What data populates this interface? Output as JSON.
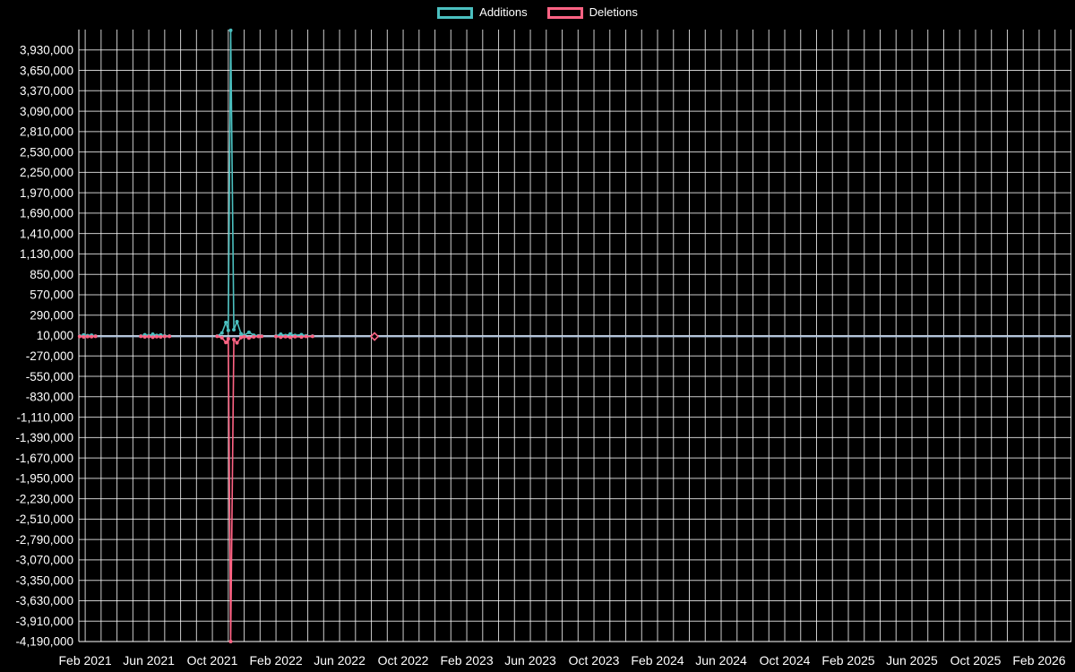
{
  "chart_data": {
    "type": "line",
    "title": "",
    "background": "#000000",
    "text_color": "#ffffff",
    "grid_color": "rgba(255,255,255,0.8)",
    "axis_line_color": "#ffffff",
    "zero_line_color": "#b0c4de",
    "zero_line_value": 0,
    "legend": {
      "position": "top",
      "items": [
        "Additions",
        "Deletions"
      ]
    },
    "x_axis": {
      "epoch_label": "Feb 2021",
      "range_months": [
        -0.4,
        62.03
      ],
      "gridline_every_months": 1,
      "gridline_month_span": [
        0,
        62
      ],
      "tick_months": [
        0,
        4,
        8,
        12,
        16,
        20,
        24,
        28,
        32,
        36,
        40,
        44,
        48,
        52,
        56,
        60
      ],
      "tick_labels": [
        "Feb 2021",
        "Jun 2021",
        "Oct 2021",
        "Feb 2022",
        "Jun 2022",
        "Oct 2022",
        "Feb 2023",
        "Jun 2023",
        "Oct 2023",
        "Feb 2024",
        "Jun 2024",
        "Oct 2024",
        "Feb 2025",
        "Jun 2025",
        "Oct 2025",
        "Feb 2026"
      ]
    },
    "y_axis": {
      "range": [
        -4190000,
        4210000
      ],
      "tick_step": 280000,
      "tick_values": [
        3930000,
        3650000,
        3370000,
        3090000,
        2810000,
        2530000,
        2250000,
        1970000,
        1690000,
        1410000,
        1130000,
        850000,
        570000,
        290000,
        10000,
        -270000,
        -550000,
        -830000,
        -1110000,
        -1390000,
        -1670000,
        -1950000,
        -2230000,
        -2510000,
        -2790000,
        -3070000,
        -3350000,
        -3630000,
        -3910000,
        -4190000
      ],
      "number_format": "thousands-separated"
    },
    "series": [
      {
        "name": "Additions",
        "color": "#4bc0c0",
        "peak_value": 4200000,
        "peak_month_label": "Nov 2021",
        "segments": [
          [
            [
              -0.35,
              4000
            ],
            [
              -0.1,
              18000
            ],
            [
              0.15,
              9000
            ],
            [
              0.4,
              15000
            ],
            [
              0.65,
              3000
            ]
          ],
          [
            [
              3.5,
              3000
            ],
            [
              3.75,
              20000
            ],
            [
              4.0,
              9000
            ],
            [
              4.25,
              28000
            ],
            [
              4.5,
              12000
            ],
            [
              4.75,
              18000
            ],
            [
              5.0,
              6000
            ],
            [
              5.3,
              2000
            ]
          ],
          [
            [
              8.3,
              3000
            ],
            [
              8.6,
              45000
            ],
            [
              8.85,
              190000
            ],
            [
              9.0,
              80000
            ],
            [
              9.15,
              4200000
            ],
            [
              9.35,
              90000
            ],
            [
              9.55,
              200000
            ],
            [
              9.8,
              35000
            ],
            [
              10.0,
              12000
            ],
            [
              10.3,
              55000
            ],
            [
              10.6,
              15000
            ],
            [
              10.9,
              5000
            ],
            [
              11.1,
              2000
            ]
          ],
          [
            [
              12.0,
              4000
            ],
            [
              12.3,
              28000
            ],
            [
              12.6,
              10000
            ],
            [
              12.9,
              32000
            ],
            [
              13.2,
              12000
            ],
            [
              13.6,
              22000
            ],
            [
              13.9,
              7000
            ],
            [
              14.3,
              2000
            ]
          ]
        ],
        "isolated_points": []
      },
      {
        "name": "Deletions",
        "color": "#ff6384",
        "peak_value": -4190000,
        "peak_month_label": "Nov 2021",
        "segments": [
          [
            [
              -0.35,
              -2000
            ],
            [
              -0.1,
              -8000
            ],
            [
              0.15,
              -4000
            ],
            [
              0.4,
              -6000
            ],
            [
              0.65,
              -1500
            ]
          ],
          [
            [
              3.5,
              -1500
            ],
            [
              3.75,
              -9000
            ],
            [
              4.0,
              -4000
            ],
            [
              4.25,
              -13000
            ],
            [
              4.5,
              -5000
            ],
            [
              4.75,
              -8000
            ],
            [
              5.0,
              -2500
            ],
            [
              5.3,
              -1000
            ]
          ],
          [
            [
              8.3,
              -1500
            ],
            [
              8.6,
              -20000
            ],
            [
              8.85,
              -85000
            ],
            [
              9.0,
              -35000
            ],
            [
              9.15,
              -4190000
            ],
            [
              9.35,
              -45000
            ],
            [
              9.55,
              -90000
            ],
            [
              9.8,
              -18000
            ],
            [
              10.0,
              -6000
            ],
            [
              10.3,
              -24000
            ],
            [
              10.6,
              -8000
            ],
            [
              10.9,
              -2500
            ],
            [
              11.1,
              -1000
            ]
          ],
          [
            [
              12.0,
              -2000
            ],
            [
              12.3,
              -13000
            ],
            [
              12.6,
              -5000
            ],
            [
              12.9,
              -15000
            ],
            [
              13.2,
              -5500
            ],
            [
              13.6,
              -10000
            ],
            [
              13.9,
              -3000
            ],
            [
              14.3,
              -1000
            ]
          ]
        ],
        "isolated_points": [
          {
            "x": 18.2,
            "y": -3000,
            "marker": "diamond"
          }
        ]
      }
    ]
  }
}
